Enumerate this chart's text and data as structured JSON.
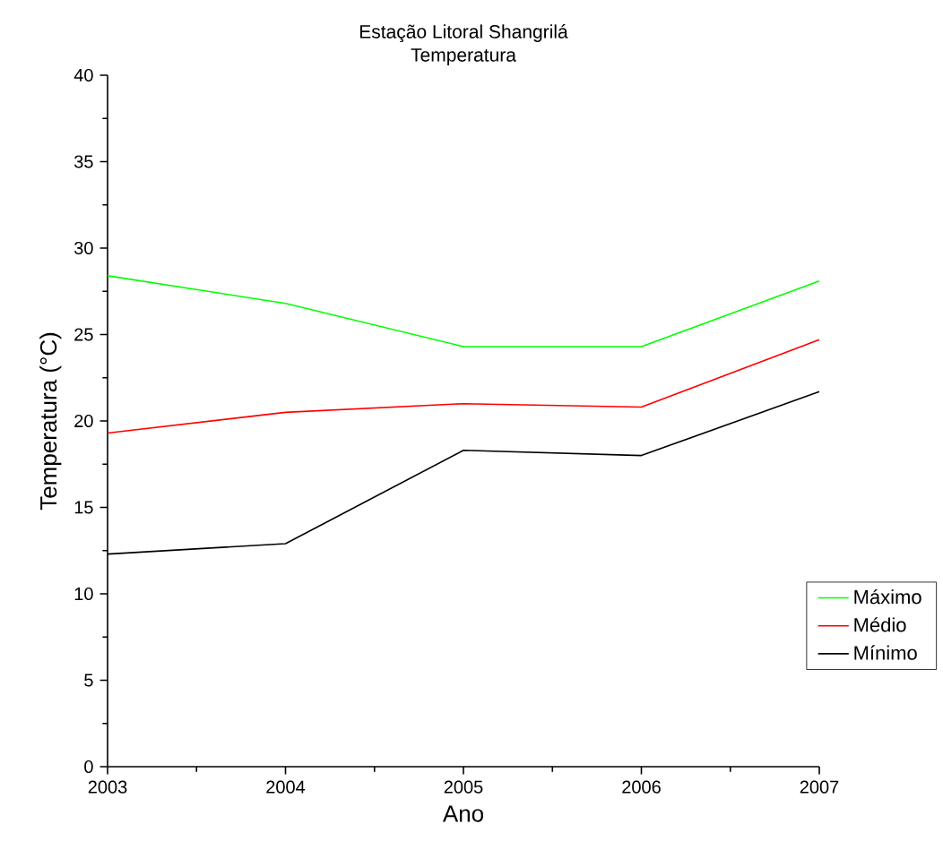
{
  "chart_data": {
    "type": "line",
    "title": "Estação Litoral Shangrilá",
    "subtitle": "Temperatura",
    "xlabel": "Ano",
    "ylabel": "Temperatura (°C)",
    "x": [
      2003,
      2004,
      2005,
      2006,
      2007
    ],
    "series": [
      {
        "name": "Máximo",
        "color": "#00ff00",
        "values": [
          28.4,
          26.8,
          24.3,
          24.3,
          28.1
        ]
      },
      {
        "name": "Médio",
        "color": "#ff0000",
        "values": [
          19.3,
          20.5,
          21.0,
          20.8,
          24.7
        ]
      },
      {
        "name": "Mínimo",
        "color": "#000000",
        "values": [
          12.3,
          12.9,
          18.3,
          18.0,
          21.7
        ]
      }
    ],
    "xlim": [
      2003,
      2007
    ],
    "xticks": [
      2003,
      2004,
      2005,
      2006,
      2007
    ],
    "ylim": [
      0,
      40
    ],
    "yticks": [
      0,
      5,
      10,
      15,
      20,
      25,
      30,
      35,
      40
    ],
    "grid": false,
    "legend": "right",
    "marker": "none",
    "line_style": "solid"
  }
}
